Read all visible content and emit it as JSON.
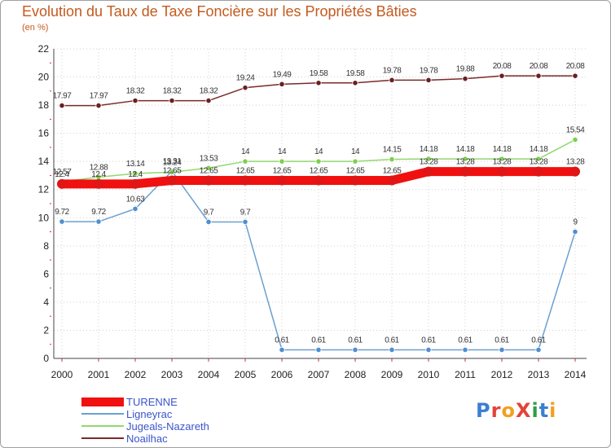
{
  "title": "Evolution du Taux de Taxe Foncière sur les Propriétés Bâties",
  "unit_label": "(en %)",
  "logo_text": "ProXiti",
  "logo_colors": [
    "#3b7fd0",
    "#e2433b",
    "#f0a020",
    "#e2433b",
    "#2f9e44",
    "#3b7fd0",
    "#f0a020"
  ],
  "chart_data": {
    "type": "line",
    "x": [
      "2000",
      "2001",
      "2002",
      "2003",
      "2004",
      "2005",
      "2006",
      "2007",
      "2008",
      "2009",
      "2010",
      "2011",
      "2012",
      "2013",
      "2014"
    ],
    "ylim": [
      0,
      22
    ],
    "yticks": [
      0,
      2,
      4,
      6,
      8,
      10,
      12,
      14,
      16,
      18,
      20,
      22
    ],
    "xlabel": "",
    "ylabel": "(en %)",
    "grid": true,
    "series": [
      {
        "name": "TURENNE",
        "color": "#f01010",
        "marker_fill": "#e01515",
        "values": [
          12.4,
          12.4,
          12.4,
          12.65,
          12.65,
          12.65,
          12.65,
          12.65,
          12.65,
          12.65,
          13.28,
          13.28,
          13.28,
          13.28,
          13.28
        ],
        "labels": [
          "12.4",
          "12.4",
          "12.4",
          "12.65",
          "12.65",
          "12.65",
          "12.65",
          "12.65",
          "12.65",
          "12.65",
          "13.28",
          "13.28",
          "13.28",
          "13.28",
          "13.28"
        ]
      },
      {
        "name": "Ligneyrac",
        "color": "#6aa0d0",
        "marker_fill": "#4f8fd0",
        "values": [
          9.72,
          9.72,
          10.63,
          13.31,
          9.7,
          9.7,
          0.61,
          0.61,
          0.61,
          0.61,
          0.61,
          0.61,
          0.61,
          0.61,
          9
        ],
        "labels": [
          "9.72",
          "9.72",
          "10.63",
          "13.31",
          "9.7",
          "9.7",
          "0.61",
          "0.61",
          "0.61",
          "0.61",
          "0.61",
          "0.61",
          "0.61",
          "0.61",
          "9"
        ]
      },
      {
        "name": "Jugeals-Nazareth",
        "color": "#90d870",
        "marker_fill": "#7ccf4f",
        "values": [
          12.57,
          12.88,
          13.14,
          13.24,
          13.53,
          14,
          14,
          14,
          14,
          14.15,
          14.18,
          14.18,
          14.18,
          14.18,
          15.54
        ],
        "labels": [
          "12.57",
          "12.88",
          "13.14",
          "13.24",
          "13.53",
          "14",
          "14",
          "14",
          "14",
          "14.15",
          "14.18",
          "14.18",
          "14.18",
          "14.18",
          "15.54"
        ]
      },
      {
        "name": "Noailhac",
        "color": "#7a2a2a",
        "marker_fill": "#6a2020",
        "values": [
          17.97,
          17.97,
          18.32,
          18.32,
          18.32,
          19.24,
          19.49,
          19.58,
          19.58,
          19.78,
          19.78,
          19.88,
          20.08,
          20.08,
          20.08
        ],
        "labels": [
          "17.97",
          "17.97",
          "18.32",
          "18.32",
          "18.32",
          "19.24",
          "19.49",
          "19.58",
          "19.58",
          "19.78",
          "19.78",
          "19.88",
          "20.08",
          "20.08",
          "20.08"
        ]
      }
    ]
  }
}
